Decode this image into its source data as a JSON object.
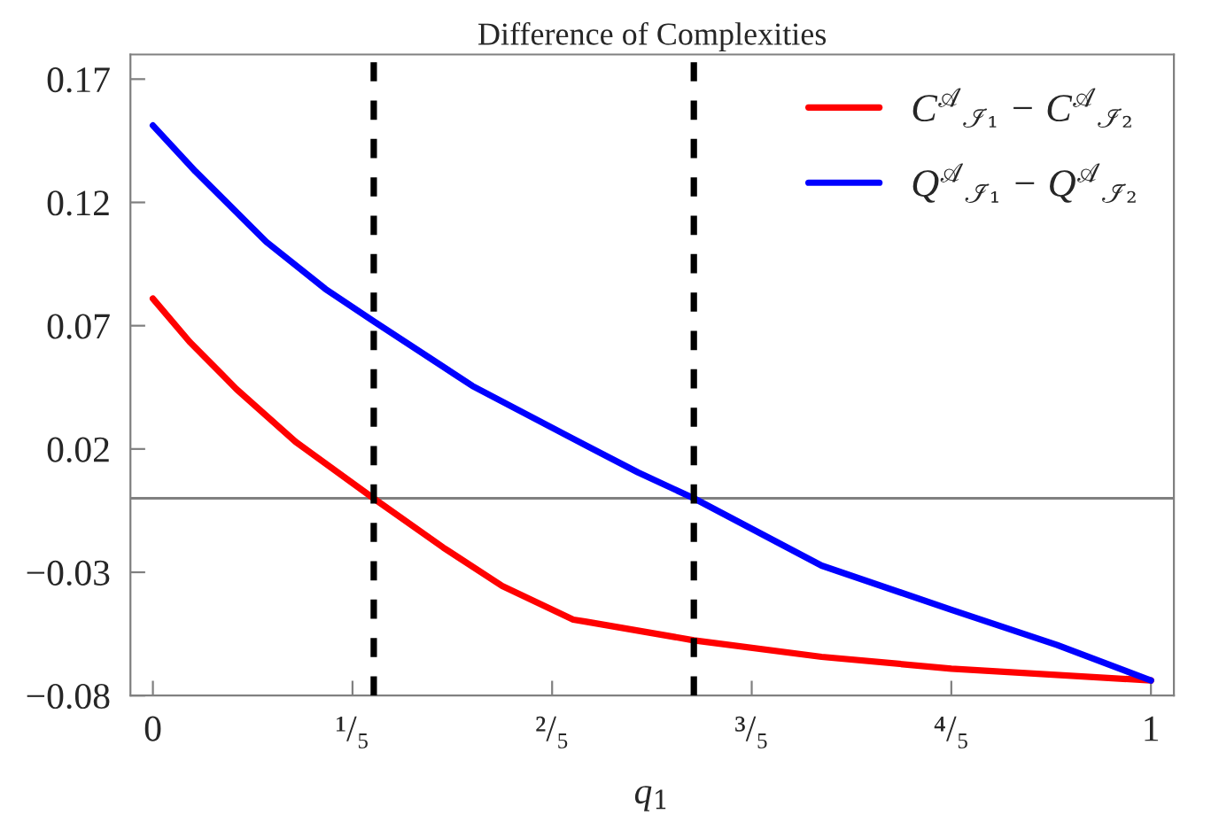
{
  "chart_data": {
    "type": "line",
    "title": "Difference of Complexities",
    "xlabel": "q$_{1}$",
    "xlim": [
      -0.0225,
      1.023
    ],
    "ylim": [
      -0.08,
      0.18
    ],
    "xticks": [
      0,
      {
        "value": 0.2,
        "label": "¹/₅"
      },
      {
        "value": 0.4,
        "label": "²/₅"
      },
      {
        "value": 0.6,
        "label": "³/₅"
      },
      {
        "value": 0.8,
        "label": "⁴/₅"
      },
      1
    ],
    "yticks": [
      0.17,
      0.12,
      0.07,
      0.02,
      {
        "value": -0.03,
        "label": "−0.03"
      },
      {
        "value": -0.08,
        "label": "−0.08"
      }
    ],
    "grid": false,
    "legend": "top right",
    "line_style": "solid",
    "marker": "none",
    "series": [
      {
        "name": "C$^{𝒜}$$_{ℐ₁}$ − C$^{𝒜}$$_{ℐ₂}$",
        "color": "#ff0000",
        "x": [
          0,
          0.0367,
          0.0837,
          0.143,
          0.221,
          0.291,
          0.35,
          0.4212,
          0.433,
          0.542,
          0.67,
          0.8,
          1
        ],
        "values": [
          0.081,
          0.0635,
          0.0443,
          0.0229,
          0.0,
          -0.02,
          -0.0356,
          -0.0492,
          -0.05,
          -0.0576,
          -0.0643,
          -0.0691,
          -0.0739
        ]
      },
      {
        "name": "Q$^{𝒜}$$_{ℐ₁}$ − Q$^{𝒜}$$_{ℐ₂}$",
        "color": "#0000ff",
        "x": [
          0,
          0.0426,
          0.1136,
          0.1728,
          0.2213,
          0.32,
          0.4212,
          0.486,
          0.542,
          0.67,
          0.8,
          0.906,
          1
        ],
        "values": [
          0.1512,
          0.1326,
          0.104,
          0.0849,
          0.0718,
          0.0456,
          0.0241,
          0.0105,
          0.0,
          -0.0273,
          -0.0452,
          -0.0595,
          -0.0739
        ]
      }
    ],
    "ref_lines": [
      {
        "axis": "y",
        "value": 0,
        "color": "#808080",
        "line_style": "solid"
      },
      {
        "axis": "x",
        "value": 0.2213,
        "color": "#000000",
        "line_style": "dashed"
      },
      {
        "axis": "x",
        "value": 0.542,
        "color": "#000000",
        "line_style": "dashed"
      }
    ]
  }
}
